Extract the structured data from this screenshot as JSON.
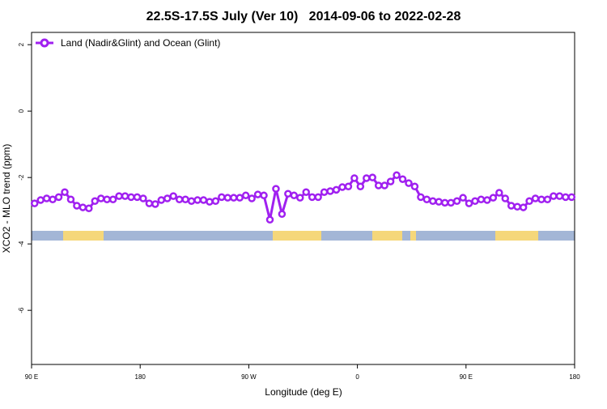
{
  "chart_data": {
    "type": "line",
    "title": "22.5S-17.5S July (Ver 10)   2014-09-06 to 2022-02-28",
    "x_label": "Longitude (deg E)",
    "y_label": "XCO2 - MLO trend (ppm)",
    "legend": "top-left",
    "xlim": [
      90,
      540
    ],
    "ylim": [
      -7.63,
      2.37
    ],
    "xticks": [
      {
        "value": 90,
        "label": "90 E"
      },
      180,
      {
        "value": 270,
        "label": "90 W"
      },
      {
        "value": 360,
        "label": "0"
      },
      {
        "value": 450,
        "label": "90 E"
      },
      {
        "value": 540,
        "label": "180"
      }
    ],
    "yticks": [
      2,
      0,
      -2,
      -4,
      -6
    ],
    "x": [
      92.5,
      97.5,
      102.5,
      107.5,
      112.5,
      117.5,
      122.5,
      127.5,
      132.5,
      137.5,
      142.5,
      147.5,
      152.5,
      157.5,
      162.5,
      167.5,
      172.5,
      177.5,
      182.5,
      187.5,
      192.5,
      197.5,
      202.5,
      207.5,
      212.5,
      217.5,
      222.5,
      227.5,
      232.5,
      237.5,
      242.5,
      247.5,
      252.5,
      257.5,
      262.5,
      267.5,
      272.5,
      277.5,
      282.5,
      287.5,
      292.5,
      297.5,
      302.5,
      307.5,
      312.5,
      317.5,
      322.5,
      327.5,
      332.5,
      337.5,
      342.5,
      347.5,
      352.5,
      357.5,
      362.5,
      367.5,
      372.5,
      377.5,
      382.5,
      387.5,
      392.5,
      397.5,
      402.5,
      407.5,
      412.5,
      417.5,
      422.5,
      427.5,
      432.5,
      437.5,
      442.5,
      447.5,
      452.5,
      457.5,
      462.5,
      467.5,
      472.5,
      477.5,
      482.5,
      487.5,
      492.5,
      497.5,
      502.5,
      507.5,
      512.5,
      517.5,
      522.5,
      527.5,
      532.5,
      537.5
    ],
    "series": [
      {
        "name": "Land (Nadir&Glint) and Ocean (Glint)",
        "color": "#a020f0",
        "values": [
          -2.78,
          -2.68,
          -2.63,
          -2.66,
          -2.59,
          -2.44,
          -2.66,
          -2.85,
          -2.9,
          -2.93,
          -2.71,
          -2.63,
          -2.66,
          -2.66,
          -2.56,
          -2.56,
          -2.59,
          -2.59,
          -2.63,
          -2.78,
          -2.8,
          -2.68,
          -2.63,
          -2.56,
          -2.66,
          -2.66,
          -2.71,
          -2.68,
          -2.68,
          -2.73,
          -2.71,
          -2.59,
          -2.61,
          -2.61,
          -2.61,
          -2.54,
          -2.63,
          -2.51,
          -2.54,
          -3.27,
          -2.34,
          -3.1,
          -2.49,
          -2.54,
          -2.61,
          -2.44,
          -2.59,
          -2.59,
          -2.44,
          -2.41,
          -2.37,
          -2.29,
          -2.27,
          -2.02,
          -2.27,
          -2.02,
          -2.0,
          -2.24,
          -2.24,
          -2.12,
          -1.93,
          -2.05,
          -2.17,
          -2.27,
          -2.59,
          -2.66,
          -2.71,
          -2.73,
          -2.76,
          -2.76,
          -2.71,
          -2.61,
          -2.78,
          -2.71,
          -2.66,
          -2.68,
          -2.61,
          -2.46,
          -2.63,
          -2.85,
          -2.88,
          -2.9,
          -2.71,
          -2.63,
          -2.66,
          -2.66,
          -2.56,
          -2.56,
          -2.59,
          -2.59
        ]
      }
    ]
  }
}
